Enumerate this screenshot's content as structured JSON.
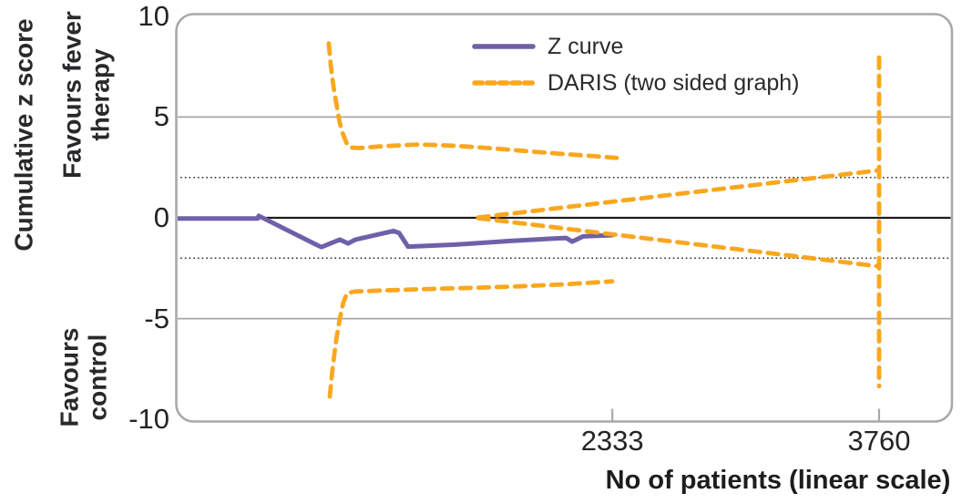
{
  "colors": {
    "z_curve": "#6f60a8",
    "daris": "#f9a71f",
    "grid_gray": "#a5a7aa",
    "border": "#a7a9ac",
    "zero_line": "#1d1d1f",
    "dotted_line": "#2a2a2a",
    "text": "#29292c"
  },
  "y_axis": {
    "title": "Cumulative z score",
    "ticks": [
      {
        "label": "10",
        "value": 10
      },
      {
        "label": "5",
        "value": 5
      },
      {
        "label": "0",
        "value": 0
      },
      {
        "label": "-5",
        "value": -5
      },
      {
        "label": "-10",
        "value": -10
      }
    ]
  },
  "x_axis": {
    "title": "No of patients (linear scale)",
    "ticks": [
      {
        "label": "2333",
        "value": 2333
      },
      {
        "label": "3760",
        "value": 3760
      }
    ]
  },
  "region_labels": {
    "top_line1": "Favours fever",
    "top_line2": "therapy",
    "bottom_line1": "Favours",
    "bottom_line2": "control"
  },
  "legend": {
    "items": [
      {
        "label": "Z curve",
        "color_key": "z_curve",
        "style": "solid"
      },
      {
        "label": "DARIS (two sided graph)",
        "color_key": "daris",
        "style": "dashed"
      }
    ]
  },
  "chart_data": {
    "type": "line",
    "title": "",
    "xlabel": "No of patients (linear scale)",
    "ylabel": "Cumulative z score",
    "xlim": [
      0,
      4150
    ],
    "ylim": [
      -10.1,
      10.1
    ],
    "x_tick_values": [
      2333,
      3760
    ],
    "y_tick_values": [
      10,
      5,
      0,
      -5,
      -10
    ],
    "grid": {
      "solid_gray_y": [
        5,
        -5
      ],
      "dotted_y": [
        2,
        -2
      ],
      "zero_y": 0
    },
    "legend_position": "top-center-inside",
    "series": [
      {
        "name": "Z curve",
        "color_key": "z_curve",
        "style": "solid",
        "width": 5,
        "points": [
          [
            0,
            -0.03
          ],
          [
            436,
            -0.03
          ],
          [
            441,
            0.1
          ],
          [
            753,
            -1.35
          ],
          [
            777,
            -1.45
          ],
          [
            875,
            -1.08
          ],
          [
            919,
            -1.27
          ],
          [
            958,
            -1.08
          ],
          [
            1162,
            -0.65
          ],
          [
            1192,
            -0.75
          ],
          [
            1240,
            -1.43
          ],
          [
            1494,
            -1.33
          ],
          [
            1786,
            -1.15
          ],
          [
            2030,
            -1.02
          ],
          [
            2087,
            -1.0
          ],
          [
            2118,
            -1.18
          ],
          [
            2176,
            -0.92
          ],
          [
            2274,
            -0.88
          ],
          [
            2332,
            -0.86
          ]
        ]
      },
      {
        "name": "DARIS upper significance boundary",
        "color_key": "daris",
        "style": "dashed",
        "width": 4.8,
        "points": [
          [
            816,
            8.65
          ],
          [
            826,
            7.6
          ],
          [
            841,
            6.5
          ],
          [
            860,
            5.45
          ],
          [
            875,
            4.7
          ],
          [
            894,
            4.1
          ],
          [
            914,
            3.65
          ],
          [
            933,
            3.48
          ],
          [
            982,
            3.46
          ],
          [
            1104,
            3.55
          ],
          [
            1299,
            3.64
          ],
          [
            1494,
            3.57
          ],
          [
            1689,
            3.45
          ],
          [
            1884,
            3.3
          ],
          [
            2079,
            3.16
          ],
          [
            2249,
            3.05
          ],
          [
            2356,
            2.97
          ]
        ]
      },
      {
        "name": "DARIS lower significance boundary",
        "color_key": "daris",
        "style": "dashed",
        "width": 4.8,
        "points": [
          [
            821,
            -8.86
          ],
          [
            836,
            -7.5
          ],
          [
            855,
            -6.1
          ],
          [
            875,
            -5.0
          ],
          [
            894,
            -4.2
          ],
          [
            914,
            -3.73
          ],
          [
            958,
            -3.65
          ],
          [
            1104,
            -3.6
          ],
          [
            1348,
            -3.53
          ],
          [
            1592,
            -3.47
          ],
          [
            1835,
            -3.4
          ],
          [
            2079,
            -3.3
          ],
          [
            2332,
            -3.15
          ]
        ]
      },
      {
        "name": "DARIS futility boundary upper",
        "color_key": "daris",
        "style": "dashed",
        "width": 4.8,
        "points": [
          [
            1616,
            0.02
          ],
          [
            3755,
            2.35
          ]
        ]
      },
      {
        "name": "DARIS futility boundary lower",
        "color_key": "daris",
        "style": "dashed",
        "width": 4.8,
        "points": [
          [
            1616,
            -0.02
          ],
          [
            3755,
            -2.4
          ]
        ]
      },
      {
        "name": "DARIS required information size line",
        "color_key": "daris",
        "style": "dashed",
        "width": 4.8,
        "points": [
          [
            3760,
            7.95
          ],
          [
            3760,
            -8.35
          ]
        ]
      }
    ]
  }
}
